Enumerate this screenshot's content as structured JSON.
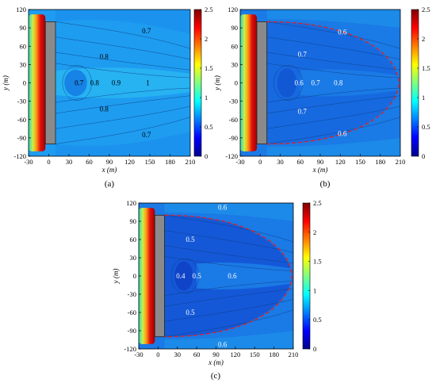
{
  "chart_data": [
    {
      "type": "heatmap",
      "panel_label": "(a)",
      "xlabel": "x (m)",
      "ylabel": "y (m)",
      "x_ticks": [
        -30,
        0,
        30,
        60,
        90,
        120,
        150,
        180,
        210
      ],
      "y_ticks": [
        -120,
        -90,
        -60,
        -30,
        0,
        30,
        60,
        90,
        120
      ],
      "xlim": [
        -30,
        210
      ],
      "ylim": [
        -120,
        120
      ],
      "colorbar": {
        "ticks": [
          0,
          0.5,
          1,
          1.5,
          2,
          2.5
        ],
        "range": [
          0,
          2.5
        ]
      },
      "obstacle": {
        "x": [
          -5,
          10
        ],
        "y": [
          -100,
          100
        ]
      },
      "contour_labels": [
        {
          "text": "0.7",
          "x": 145,
          "y": 85
        },
        {
          "text": "0.8",
          "x": 82,
          "y": 43
        },
        {
          "text": "0.7",
          "x": 45,
          "y": 0
        },
        {
          "text": "0.8",
          "x": 68,
          "y": 0
        },
        {
          "text": "0.9",
          "x": 100,
          "y": 0
        },
        {
          "text": "1",
          "x": 147,
          "y": 0
        },
        {
          "text": "0.8",
          "x": 82,
          "y": -43
        },
        {
          "text": "0.7",
          "x": 145,
          "y": -85
        }
      ],
      "boundary_curve": false
    },
    {
      "type": "heatmap",
      "panel_label": "(b)",
      "xlabel": "x (m)",
      "ylabel": "y (m)",
      "x_ticks": [
        -30,
        0,
        30,
        60,
        90,
        120,
        150,
        180,
        210
      ],
      "y_ticks": [
        -120,
        -90,
        -60,
        -30,
        0,
        30,
        60,
        90,
        120
      ],
      "xlim": [
        -30,
        210
      ],
      "ylim": [
        -120,
        120
      ],
      "colorbar": {
        "ticks": [
          0,
          0.5,
          1,
          1.5,
          2,
          2.5
        ],
        "range": [
          0,
          2.5
        ]
      },
      "obstacle": {
        "x": [
          -5,
          10
        ],
        "y": [
          -100,
          100
        ]
      },
      "contour_labels": [
        {
          "text": "0.6",
          "x": 123,
          "y": 83
        },
        {
          "text": "0.7",
          "x": 63,
          "y": 47
        },
        {
          "text": "0.6",
          "x": 58,
          "y": 0
        },
        {
          "text": "0.7",
          "x": 83,
          "y": 0
        },
        {
          "text": "0.8",
          "x": 117,
          "y": 0
        },
        {
          "text": "0.7",
          "x": 63,
          "y": -47
        },
        {
          "text": "0.6",
          "x": 123,
          "y": -83
        }
      ],
      "boundary_curve": true
    },
    {
      "type": "heatmap",
      "panel_label": "(c)",
      "xlabel": "x (m)",
      "ylabel": "y (m)",
      "x_ticks": [
        -30,
        0,
        30,
        60,
        90,
        120,
        150,
        180,
        210
      ],
      "y_ticks": [
        -120,
        -90,
        -60,
        -30,
        0,
        30,
        60,
        90,
        120
      ],
      "xlim": [
        -30,
        210
      ],
      "ylim": [
        -120,
        120
      ],
      "colorbar": {
        "ticks": [
          0,
          0.5,
          1,
          1.5,
          2,
          2.5
        ],
        "range": [
          0,
          2.5
        ]
      },
      "obstacle": {
        "x": [
          -5,
          10
        ],
        "y": [
          -100,
          100
        ]
      },
      "contour_labels": [
        {
          "text": "0.6",
          "x": 100,
          "y": 113
        },
        {
          "text": "0.5",
          "x": 50,
          "y": 60
        },
        {
          "text": "0.4",
          "x": 35,
          "y": 0
        },
        {
          "text": "0.5",
          "x": 60,
          "y": 0
        },
        {
          "text": "0.6",
          "x": 115,
          "y": 0
        },
        {
          "text": "0.5",
          "x": 50,
          "y": -60
        },
        {
          "text": "0.6",
          "x": 100,
          "y": -113
        }
      ],
      "boundary_curve": true
    }
  ],
  "colors": {
    "field_light": "#1e9cf0",
    "field_mid": "#1a7ae6",
    "field_dark": "#1458d8",
    "obstacle": "#8a8a8a",
    "boundary_curve": "#e02020"
  }
}
